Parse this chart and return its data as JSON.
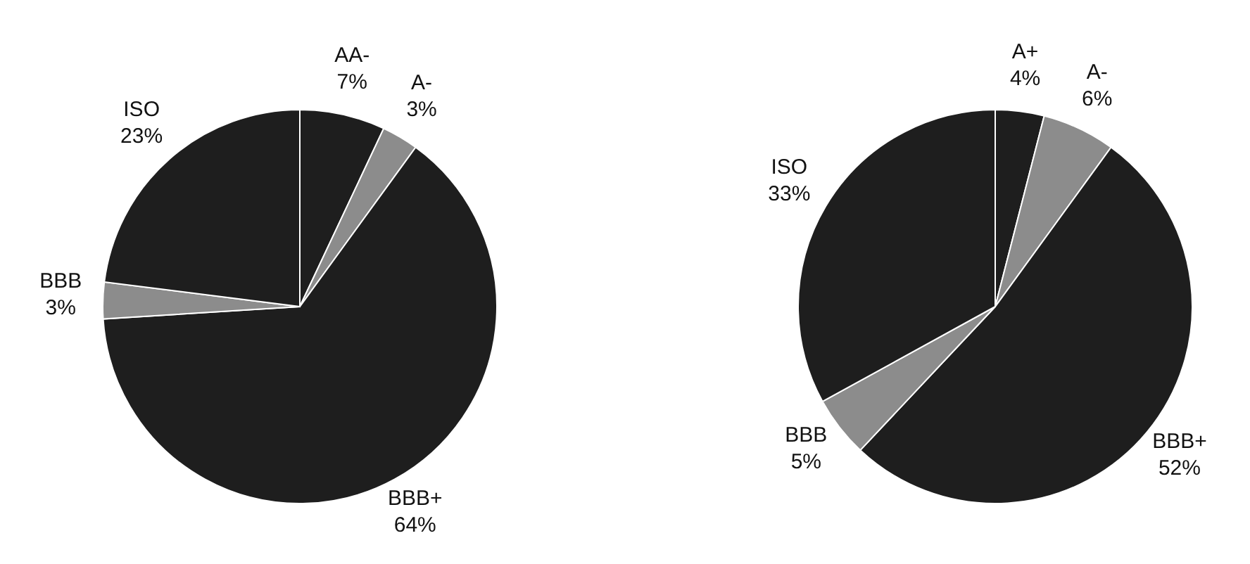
{
  "chart_data": [
    {
      "type": "pie",
      "categories": [
        "AA-",
        "A-",
        "BBB+",
        "BBB",
        "ISO"
      ],
      "values": [
        7,
        3,
        64,
        3,
        23
      ],
      "colors": [
        "#1e1e1e",
        "#8c8c8c",
        "#1e1e1e",
        "#8c8c8c",
        "#1e1e1e"
      ],
      "value_labels": [
        "7%",
        "3%",
        "64%",
        "3%",
        "23%"
      ]
    },
    {
      "type": "pie",
      "categories": [
        "A+",
        "A-",
        "BBB+",
        "BBB",
        "ISO"
      ],
      "values": [
        4,
        6,
        52,
        5,
        33
      ],
      "colors": [
        "#1e1e1e",
        "#8c8c8c",
        "#1e1e1e",
        "#8c8c8c",
        "#1e1e1e"
      ],
      "value_labels": [
        "4%",
        "6%",
        "52%",
        "5%",
        "33%"
      ]
    }
  ]
}
